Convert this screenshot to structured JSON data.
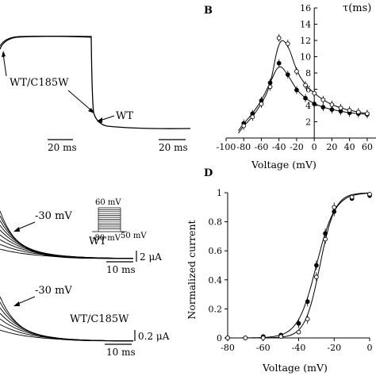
{
  "panels": {
    "B": {
      "letter": "B"
    },
    "D": {
      "letter": "D"
    },
    "A": {
      "label_mutant": "WT/C185W",
      "label_wt": "WT",
      "scale_left": "20 ms",
      "scale_right": "20 ms"
    },
    "C": {
      "inset_top": "60 mV",
      "inset_bottom": "-80 mV",
      "inset_right": "50 mV",
      "wt": {
        "voltage_label": "-30 mV",
        "name": "WT",
        "current_scale": "2 μA",
        "time_scale": "10 ms"
      },
      "mutant": {
        "voltage_label": "-30 mV",
        "name": "WT/C185W",
        "current_scale": "0.2 μA",
        "time_scale": "10 ms"
      }
    }
  },
  "chart_data": [
    {
      "panel": "B",
      "type": "scatter",
      "title": "",
      "xlabel": "Voltage (mV)",
      "ylabel": "τ(ms)",
      "xlim": [
        -100,
        70
      ],
      "ylim": [
        0,
        16
      ],
      "x_ticks": [
        "-100",
        "-80",
        "-60",
        "-40",
        "-20",
        "0",
        "20",
        "40",
        "60"
      ],
      "y_ticks": [
        "2",
        "4",
        "6",
        "8",
        "10",
        "12",
        "14",
        "16"
      ],
      "grid": false,
      "series": [
        {
          "marker": "filled",
          "x": [
            -80,
            -70,
            -60,
            -50,
            -40,
            -30,
            -20,
            -10,
            0,
            10,
            20,
            30,
            40,
            50,
            60
          ],
          "y": [
            1.8,
            3.0,
            4.6,
            6.8,
            9.2,
            7.8,
            5.9,
            4.9,
            4.2,
            3.8,
            3.5,
            3.3,
            3.1,
            3.0,
            2.9
          ]
        },
        {
          "marker": "open",
          "x": [
            -80,
            -70,
            -60,
            -50,
            -40,
            -30,
            -20,
            -10,
            0,
            10,
            20,
            30,
            40,
            50,
            60
          ],
          "y": [
            1.5,
            2.6,
            4.2,
            6.3,
            12.3,
            11.6,
            8.2,
            6.5,
            5.5,
            4.7,
            4.1,
            3.7,
            3.4,
            3.2,
            3.0
          ]
        }
      ]
    },
    {
      "panel": "D",
      "type": "scatter",
      "title": "",
      "xlabel": "Voltage (mV)",
      "ylabel": "Normalized current",
      "xlim": [
        -80,
        0
      ],
      "ylim": [
        0,
        1
      ],
      "x_ticks": [
        "-80",
        "-60",
        "-40",
        "-20",
        "0"
      ],
      "y_ticks": [
        "0",
        "0.2",
        "0.4",
        "0.6",
        "0.8",
        "1"
      ],
      "grid": false,
      "series": [
        {
          "marker": "filled",
          "x": [
            -80,
            -70,
            -60,
            -50,
            -40,
            -35,
            -30,
            -25,
            -20,
            -10,
            0
          ],
          "y": [
            0.0,
            0.0,
            0.01,
            0.02,
            0.1,
            0.25,
            0.5,
            0.72,
            0.87,
            0.96,
            0.98
          ]
        },
        {
          "marker": "open",
          "x": [
            -80,
            -70,
            -60,
            -50,
            -40,
            -35,
            -30,
            -25,
            -20,
            -10,
            0
          ],
          "y": [
            0.0,
            0.0,
            0.0,
            0.01,
            0.04,
            0.13,
            0.42,
            0.68,
            0.9,
            0.97,
            0.99
          ]
        }
      ]
    }
  ]
}
